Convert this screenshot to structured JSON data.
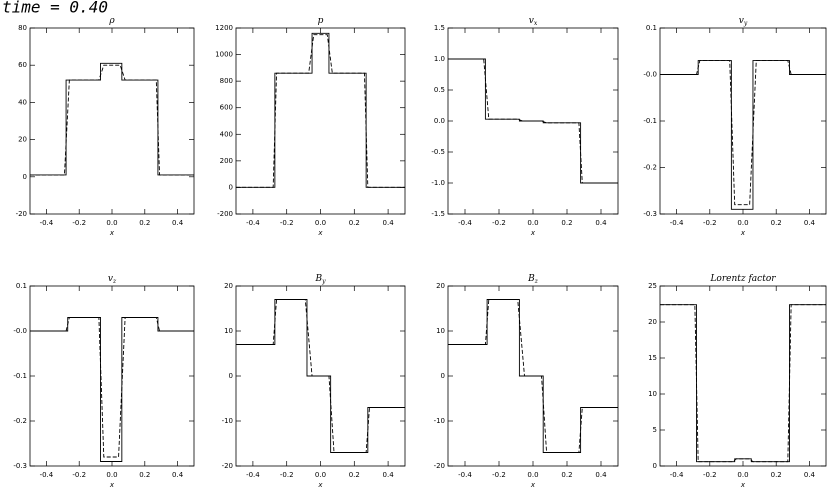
{
  "header": {
    "title": "time =  0.40"
  },
  "chart_data": [
    {
      "type": "line",
      "title": "ρ",
      "xlabel": "x",
      "xlim": [
        -0.5,
        0.5
      ],
      "xticks": [
        -0.4,
        -0.2,
        {
          "value": 0,
          "label": "0.0"
        },
        0.2,
        0.4
      ],
      "ylim": [
        -20,
        80
      ],
      "yticks": [
        -20,
        0,
        20,
        40,
        60,
        80
      ],
      "series": [
        {
          "color": "#000",
          "dash": false,
          "x": [
            -0.5,
            -0.28,
            -0.28,
            -0.07,
            -0.07,
            0.06,
            0.06,
            0.28,
            0.28,
            0.5
          ],
          "values": [
            1,
            1,
            52,
            52,
            61,
            61,
            52,
            52,
            1,
            1
          ]
        },
        {
          "color": "#000",
          "dash": true,
          "x": [
            -0.5,
            -0.29,
            -0.26,
            -0.08,
            -0.05,
            0.05,
            0.08,
            0.27,
            0.29,
            0.5
          ],
          "values": [
            1,
            1,
            52,
            52,
            60,
            60,
            52,
            52,
            1,
            1
          ]
        }
      ]
    },
    {
      "type": "line",
      "title": "p",
      "xlabel": "x",
      "xlim": [
        -0.5,
        0.5
      ],
      "xticks": [
        -0.4,
        -0.2,
        {
          "value": 0,
          "label": "0.0"
        },
        0.2,
        0.4
      ],
      "ylim": [
        -200,
        1200
      ],
      "yticks": [
        -200,
        0,
        200,
        400,
        600,
        800,
        1000,
        1200
      ],
      "series": [
        {
          "color": "#000",
          "dash": false,
          "x": [
            -0.5,
            -0.27,
            -0.27,
            -0.05,
            -0.05,
            0.05,
            0.05,
            0.27,
            0.27,
            0.5
          ],
          "values": [
            1,
            1,
            860,
            860,
            1160,
            1160,
            860,
            860,
            1,
            1
          ]
        },
        {
          "color": "#000",
          "dash": true,
          "x": [
            -0.5,
            -0.28,
            -0.26,
            -0.07,
            -0.04,
            0.04,
            0.07,
            0.26,
            0.28,
            0.5
          ],
          "values": [
            1,
            1,
            860,
            860,
            1150,
            1150,
            860,
            860,
            1,
            1
          ]
        }
      ]
    },
    {
      "type": "line",
      "title": "v",
      "title_sub": "x",
      "xlabel": "x",
      "xlim": [
        -0.5,
        0.5
      ],
      "xticks": [
        -0.4,
        -0.2,
        {
          "value": 0,
          "label": "0.0"
        },
        0.2,
        0.4
      ],
      "ylim": [
        -1.5,
        1.5
      ],
      "yticks": [
        -1.5,
        {
          "value": -1,
          "label": "-1.0"
        },
        -0.5,
        {
          "value": 0,
          "label": "0.0"
        },
        0.5,
        {
          "value": 1,
          "label": "1.0"
        },
        1.5
      ],
      "series": [
        {
          "color": "#000",
          "dash": false,
          "x": [
            -0.5,
            -0.28,
            -0.28,
            -0.08,
            -0.08,
            0.06,
            0.06,
            0.28,
            0.28,
            0.5
          ],
          "values": [
            1,
            1,
            0.03,
            0.03,
            0,
            0,
            -0.03,
            -0.03,
            -1,
            -1
          ]
        },
        {
          "color": "#000",
          "dash": true,
          "x": [
            -0.5,
            -0.29,
            -0.26,
            -0.09,
            -0.06,
            0.05,
            0.08,
            0.27,
            0.29,
            0.5
          ],
          "values": [
            1,
            1,
            0.03,
            0.03,
            0,
            0,
            -0.03,
            -0.03,
            -1,
            -1
          ]
        }
      ]
    },
    {
      "type": "line",
      "title": "v",
      "title_sub": "y",
      "xlabel": "x",
      "xlim": [
        -0.5,
        0.5
      ],
      "xticks": [
        -0.4,
        -0.2,
        {
          "value": 0,
          "label": "0.0"
        },
        0.2,
        0.4
      ],
      "ylim": [
        -0.3,
        0.1
      ],
      "yticks": [
        -0.3,
        -0.2,
        -0.1,
        {
          "value": 0,
          "label": "-0.0"
        },
        0.1
      ],
      "series": [
        {
          "color": "#000",
          "dash": false,
          "x": [
            -0.5,
            -0.27,
            -0.27,
            -0.07,
            -0.07,
            0.06,
            0.06,
            0.28,
            0.28,
            0.5
          ],
          "values": [
            0,
            0,
            0.03,
            0.03,
            -0.29,
            -0.29,
            0.03,
            0.03,
            0,
            0
          ]
        },
        {
          "color": "#000",
          "dash": true,
          "x": [
            -0.5,
            -0.28,
            -0.26,
            -0.08,
            -0.05,
            0.04,
            0.08,
            0.27,
            0.29,
            0.5
          ],
          "values": [
            0,
            0,
            0.03,
            0.03,
            -0.28,
            -0.28,
            0.03,
            0.03,
            0,
            0
          ]
        }
      ]
    },
    {
      "type": "line",
      "title": "v",
      "title_sub": "z",
      "xlabel": "x",
      "xlim": [
        -0.5,
        0.5
      ],
      "xticks": [
        -0.4,
        -0.2,
        {
          "value": 0,
          "label": "0.0"
        },
        0.2,
        0.4
      ],
      "ylim": [
        -0.3,
        0.1
      ],
      "yticks": [
        -0.3,
        -0.2,
        -0.1,
        {
          "value": 0,
          "label": "-0.0"
        },
        0.1
      ],
      "series": [
        {
          "color": "#000",
          "dash": false,
          "x": [
            -0.5,
            -0.27,
            -0.27,
            -0.07,
            -0.07,
            0.06,
            0.06,
            0.28,
            0.28,
            0.5
          ],
          "values": [
            0,
            0,
            0.03,
            0.03,
            -0.29,
            -0.29,
            0.03,
            0.03,
            0,
            0
          ]
        },
        {
          "color": "#000",
          "dash": true,
          "x": [
            -0.5,
            -0.28,
            -0.26,
            -0.08,
            -0.05,
            0.04,
            0.08,
            0.27,
            0.29,
            0.5
          ],
          "values": [
            0,
            0,
            0.03,
            0.03,
            -0.28,
            -0.28,
            0.03,
            0.03,
            0,
            0
          ]
        }
      ]
    },
    {
      "type": "line",
      "title": "B",
      "title_sub": "y",
      "xlabel": "x",
      "xlim": [
        -0.5,
        0.5
      ],
      "xticks": [
        -0.4,
        -0.2,
        {
          "value": 0,
          "label": "0.0"
        },
        0.2,
        0.4
      ],
      "ylim": [
        -20,
        20
      ],
      "yticks": [
        -20,
        -10,
        0,
        10,
        20
      ],
      "series": [
        {
          "color": "#000",
          "dash": false,
          "x": [
            -0.5,
            -0.27,
            -0.27,
            -0.08,
            -0.08,
            0.06,
            0.06,
            0.28,
            0.28,
            0.5
          ],
          "values": [
            7,
            7,
            17,
            17,
            0,
            0,
            -17,
            -17,
            -7,
            -7
          ]
        },
        {
          "color": "#000",
          "dash": true,
          "x": [
            -0.5,
            -0.28,
            -0.26,
            -0.09,
            -0.05,
            0.05,
            0.08,
            0.27,
            0.29,
            0.5
          ],
          "values": [
            7,
            7,
            17,
            17,
            0,
            0,
            -17,
            -17,
            -7,
            -7
          ]
        }
      ]
    },
    {
      "type": "line",
      "title": "B",
      "title_sub": "z",
      "xlabel": "x",
      "xlim": [
        -0.5,
        0.5
      ],
      "xticks": [
        -0.4,
        -0.2,
        {
          "value": 0,
          "label": "0.0"
        },
        0.2,
        0.4
      ],
      "ylim": [
        -20,
        20
      ],
      "yticks": [
        -20,
        -10,
        0,
        10,
        20
      ],
      "series": [
        {
          "color": "#000",
          "dash": false,
          "x": [
            -0.5,
            -0.27,
            -0.27,
            -0.08,
            -0.08,
            0.06,
            0.06,
            0.28,
            0.28,
            0.5
          ],
          "values": [
            7,
            7,
            17,
            17,
            0,
            0,
            -17,
            -17,
            -7,
            -7
          ]
        },
        {
          "color": "#000",
          "dash": true,
          "x": [
            -0.5,
            -0.28,
            -0.26,
            -0.09,
            -0.05,
            0.05,
            0.08,
            0.27,
            0.29,
            0.5
          ],
          "values": [
            7,
            7,
            17,
            17,
            0,
            0,
            -17,
            -17,
            -7,
            -7
          ]
        }
      ]
    },
    {
      "type": "line",
      "title": "Lorentz factor",
      "xlabel": "x",
      "xlim": [
        -0.5,
        0.5
      ],
      "xticks": [
        -0.4,
        -0.2,
        {
          "value": 0,
          "label": "0.0"
        },
        0.2,
        0.4
      ],
      "ylim": [
        0,
        25
      ],
      "yticks": [
        0,
        5,
        10,
        15,
        20,
        25
      ],
      "series": [
        {
          "color": "#000",
          "dash": false,
          "x": [
            -0.5,
            -0.28,
            -0.28,
            -0.05,
            -0.05,
            0.05,
            0.05,
            0.28,
            0.28,
            0.5
          ],
          "values": [
            22.4,
            22.4,
            0.6,
            0.6,
            1,
            1,
            0.6,
            0.6,
            22.4,
            22.4
          ]
        },
        {
          "color": "#000",
          "dash": true,
          "x": [
            -0.5,
            -0.29,
            -0.27,
            -0.06,
            -0.04,
            0.04,
            0.06,
            0.27,
            0.29,
            0.5
          ],
          "values": [
            22.4,
            22.4,
            0.6,
            0.6,
            1,
            1,
            0.6,
            0.6,
            22.4,
            22.4
          ]
        }
      ]
    }
  ]
}
